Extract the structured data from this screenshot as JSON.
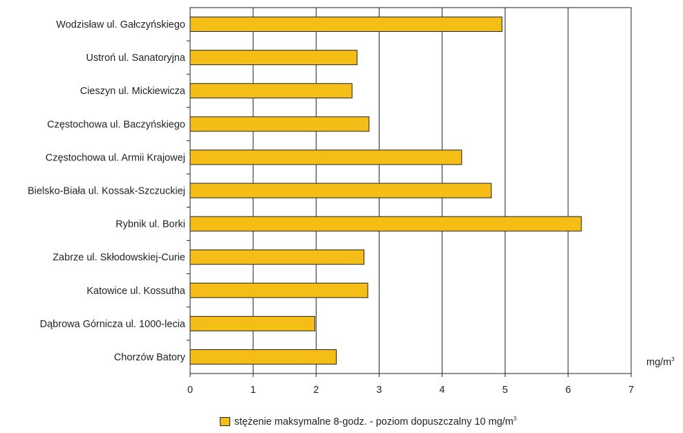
{
  "chart_data": {
    "type": "bar",
    "orientation": "horizontal",
    "categories": [
      "Wodzisław ul. Gałczyńskiego",
      "Ustroń ul. Sanatoryjna",
      "Cieszyn ul. Mickiewicza",
      "Częstochowa ul. Baczyńskiego",
      "Częstochowa ul. Armii Krajowej",
      "Bielsko-Biała ul. Kossak-Szczuckiej",
      "Rybnik ul. Borki",
      "Zabrze ul. Skłodowskiej-Curie",
      "Katowice ul. Kossutha",
      "Dąbrowa Górnicza ul. 1000-lecia",
      "Chorzów Batory"
    ],
    "series": [
      {
        "name": "stężenie maksymalne 8-godz. - poziom dopuszczalny 10 mg/m",
        "values": [
          4.95,
          2.65,
          2.57,
          2.84,
          4.31,
          4.78,
          6.21,
          2.76,
          2.82,
          1.98,
          2.32
        ]
      }
    ],
    "xlim": [
      0,
      7
    ],
    "xticks": [
      "0",
      "1",
      "2",
      "3",
      "4",
      "5",
      "6",
      "7"
    ],
    "xlabel": "mg/m",
    "xlabel_superscript": "3",
    "legend_superscript": "3",
    "grid": "vertical",
    "legend_position": "bottom",
    "colors": {
      "bar": "#f5be16",
      "stroke": "#231f20",
      "background": "#ffffff"
    }
  }
}
